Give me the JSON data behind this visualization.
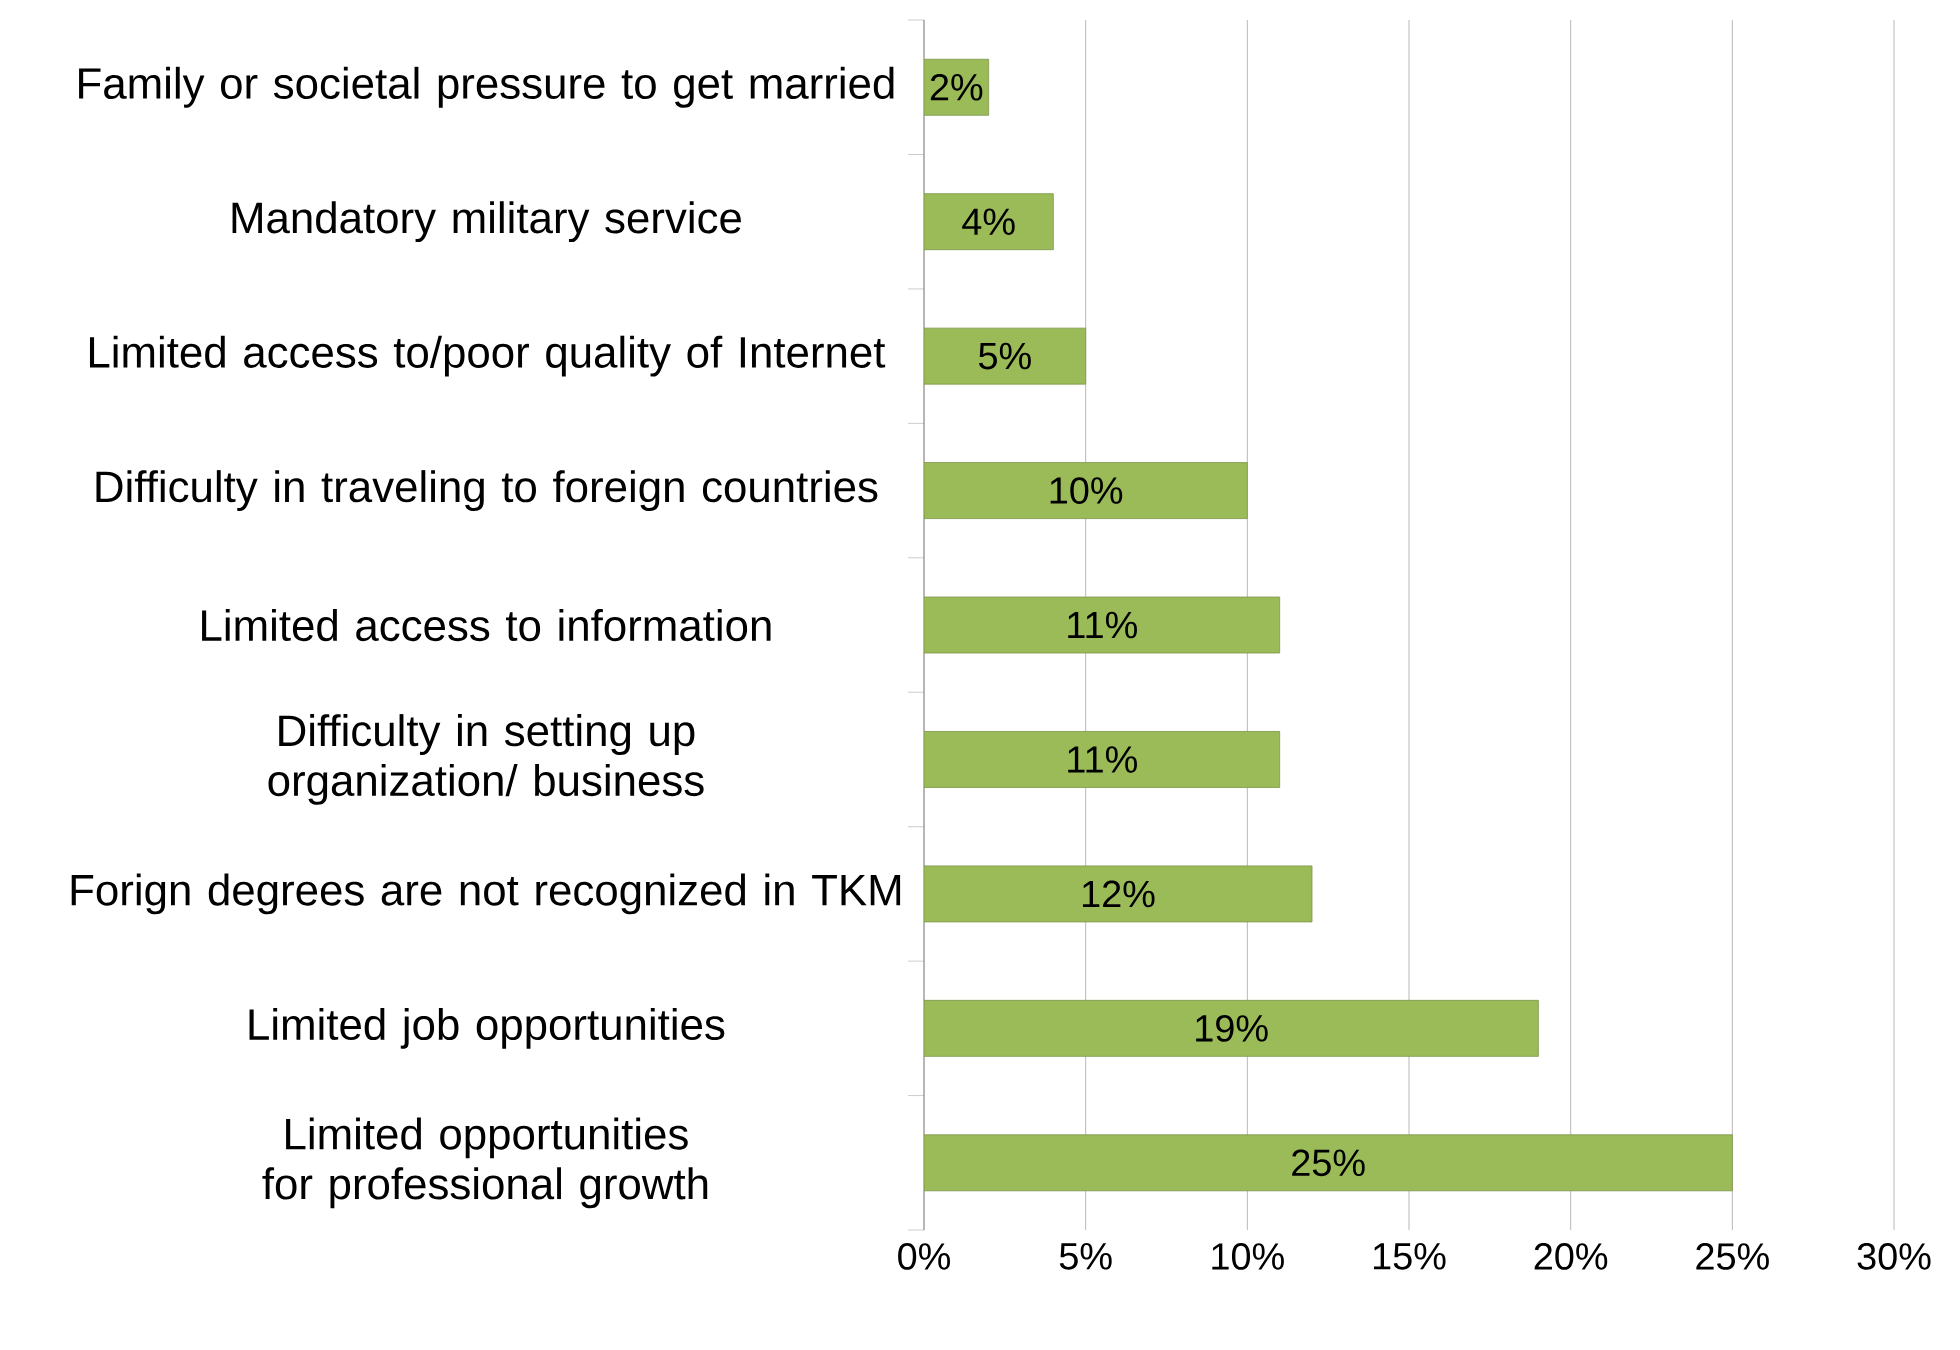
{
  "chart_data": {
    "type": "bar",
    "orientation": "horizontal",
    "categories": [
      "Family or societal pressure to get married",
      "Mandatory military service",
      "Limited access to/poor quality of Internet",
      "Difficulty in traveling to foreign countries",
      "Limited access to information",
      "Difficulty in setting up organization/ business",
      "Forign degrees are not recognized in TKM",
      "Limited job opportunities",
      "Limited opportunities for professional growth"
    ],
    "values": [
      2,
      4,
      5,
      10,
      11,
      11,
      12,
      19,
      25
    ],
    "value_labels": [
      "2%",
      "4%",
      "5%",
      "10%",
      "11%",
      "11%",
      "12%",
      "19%",
      "25%"
    ],
    "color": "#9bbb59",
    "xlim": [
      0,
      30
    ],
    "xticks": [
      {
        "value": 0,
        "label": "0%"
      },
      {
        "value": 5,
        "label": "5%"
      },
      {
        "value": 10,
        "label": "10%"
      },
      {
        "value": 15,
        "label": "15%"
      },
      {
        "value": 20,
        "label": "20%"
      },
      {
        "value": 25,
        "label": "25%"
      },
      {
        "value": 30,
        "label": "30%"
      }
    ],
    "grid": "x"
  }
}
